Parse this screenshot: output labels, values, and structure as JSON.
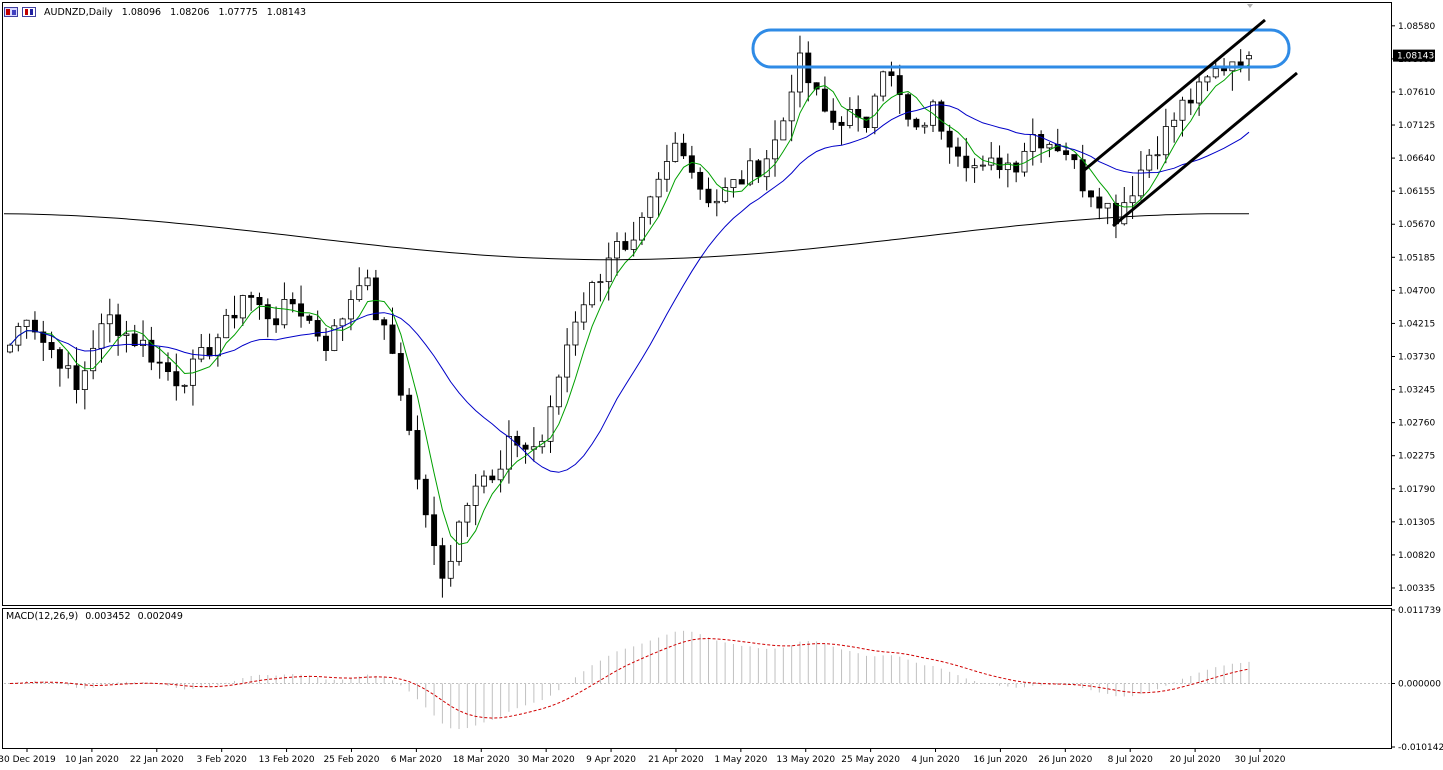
{
  "header": {
    "symbol": "AUDNZD,Daily",
    "open": "1.08096",
    "high": "1.08206",
    "low": "1.07775",
    "close": "1.08143"
  },
  "macd_header": {
    "label": "MACD(12,26,9)",
    "main": "0.003452",
    "signal": "0.002049"
  },
  "colors": {
    "bull_body": "#ffffff",
    "bear_body": "#000000",
    "ma_fast": "#00a000",
    "ma_mid": "#0000c8",
    "ma_slow": "#000000",
    "macd_hist": "#c0c0c0",
    "macd_signal": "#d00000",
    "highlight": "#2f8be6"
  },
  "chart_data": [
    {
      "type": "candlestick",
      "title": "AUDNZD,Daily",
      "ylim": [
        1.001,
        1.089
      ],
      "price_ticks": [
        "1.08580",
        "1.08095",
        "1.07610",
        "1.07125",
        "1.06640",
        "1.06155",
        "1.05670",
        "1.05185",
        "1.04700",
        "1.04215",
        "1.03730",
        "1.03245",
        "1.02760",
        "1.02275",
        "1.01790",
        "1.01305",
        "1.00820",
        "1.00335"
      ],
      "current_price": "1.08143",
      "date_ticks": [
        "30 Dec 2019",
        "10 Jan 2020",
        "22 Jan 2020",
        "3 Feb 2020",
        "13 Feb 2020",
        "25 Feb 2020",
        "6 Mar 2020",
        "18 Mar 2020",
        "30 Mar 2020",
        "9 Apr 2020",
        "21 Apr 2020",
        "1 May 2020",
        "13 May 2020",
        "25 May 2020",
        "4 Jun 2020",
        "16 Jun 2020",
        "26 Jun 2020",
        "8 Jul 2020",
        "20 Jul 2020",
        "30 Jul 2020"
      ],
      "close_path": [
        1.039,
        1.044,
        1.0395,
        1.037,
        1.032,
        1.0395,
        1.043,
        1.0405,
        1.039,
        1.036,
        1.034,
        1.0355,
        1.039,
        1.042,
        1.047,
        1.044,
        1.043,
        1.0455,
        1.042,
        1.039,
        1.044,
        1.05,
        1.0425,
        1.037,
        1.024,
        1.011,
        1.005,
        1.015,
        1.021,
        1.018,
        1.0255,
        1.0235,
        1.0255,
        1.037,
        1.045,
        1.048,
        1.054,
        1.051,
        1.058,
        1.064,
        1.07,
        1.063,
        1.06,
        1.062,
        1.064,
        1.066,
        1.07,
        1.081,
        1.076,
        1.0715,
        1.073,
        1.07,
        1.081,
        1.076,
        1.069,
        1.074,
        1.07,
        1.067,
        1.064,
        1.066,
        1.0655,
        1.07,
        1.069,
        1.068,
        1.063,
        1.061,
        1.058,
        1.062,
        1.067,
        1.07,
        1.074,
        1.076,
        1.079,
        1.081,
        1.0814
      ],
      "ma_slow_range": [
        1.051,
        1.0585
      ]
    },
    {
      "type": "bar",
      "title": "MACD(12,26,9)",
      "ylim": [
        -0.010142,
        0.011739
      ],
      "ticks": [
        "0.011739",
        "0.000000",
        "-0.010142"
      ],
      "main": 0.003452,
      "signal": 0.002049
    }
  ]
}
